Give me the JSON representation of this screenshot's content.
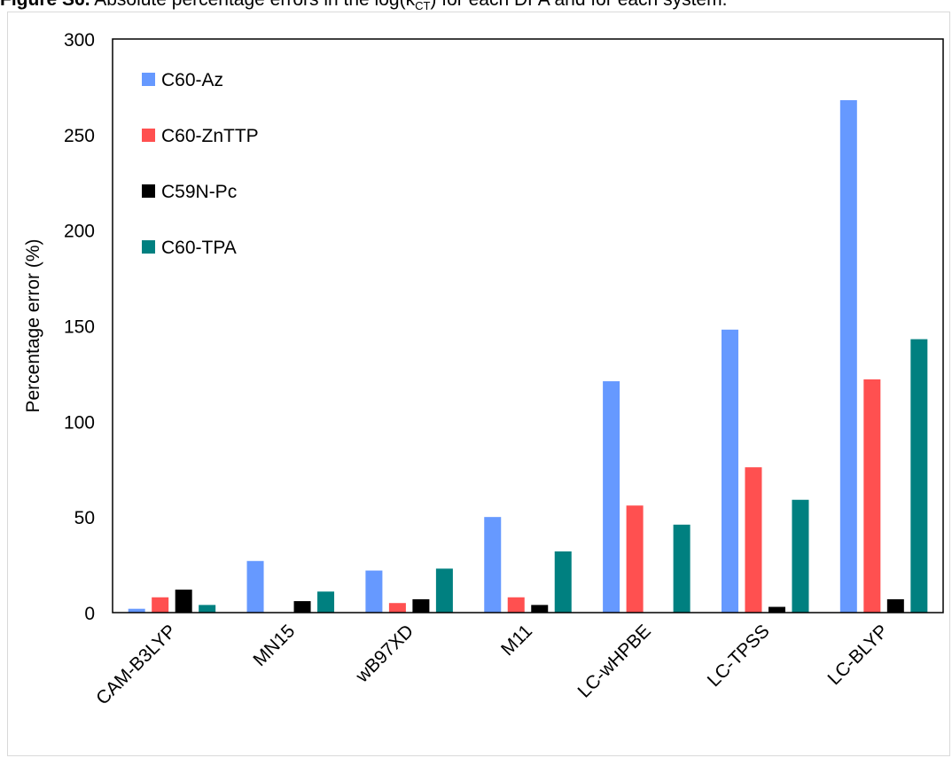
{
  "caption": {
    "prefix": "Figure S6.",
    "text_before_sub": " Absolute percentage errors in the log(k",
    "sub": "CT",
    "text_after_sub": ") for each DFA and for each system."
  },
  "colors": {
    "C60-Az": "#6699ff",
    "C60-ZnTTP": "#ff5050",
    "C59N-Pc": "#000000",
    "C60-TPA": "#008080"
  },
  "chart_data": {
    "type": "bar",
    "title": "",
    "xlabel": "",
    "ylabel": "Percentage error (%)",
    "ylim": [
      0,
      300
    ],
    "yticks": [
      "0",
      "50",
      "100",
      "150",
      "200",
      "250",
      "300"
    ],
    "grid": false,
    "legend_position": "top-left",
    "categories": [
      "CAM-B3LYP",
      "MN15",
      "wB97XD",
      "M11",
      "LC-wHPBE",
      "LC-TPSS",
      "LC-BLYP"
    ],
    "series": [
      {
        "name": "C60-Az",
        "values": [
          2,
          27,
          22,
          50,
          121,
          148,
          268
        ]
      },
      {
        "name": "C60-ZnTTP",
        "values": [
          8,
          0,
          5,
          8,
          56,
          76,
          122
        ]
      },
      {
        "name": "C59N-Pc",
        "values": [
          12,
          6,
          7,
          4,
          0,
          3,
          7
        ]
      },
      {
        "name": "C60-TPA",
        "values": [
          4,
          11,
          23,
          32,
          46,
          59,
          143
        ]
      }
    ]
  }
}
